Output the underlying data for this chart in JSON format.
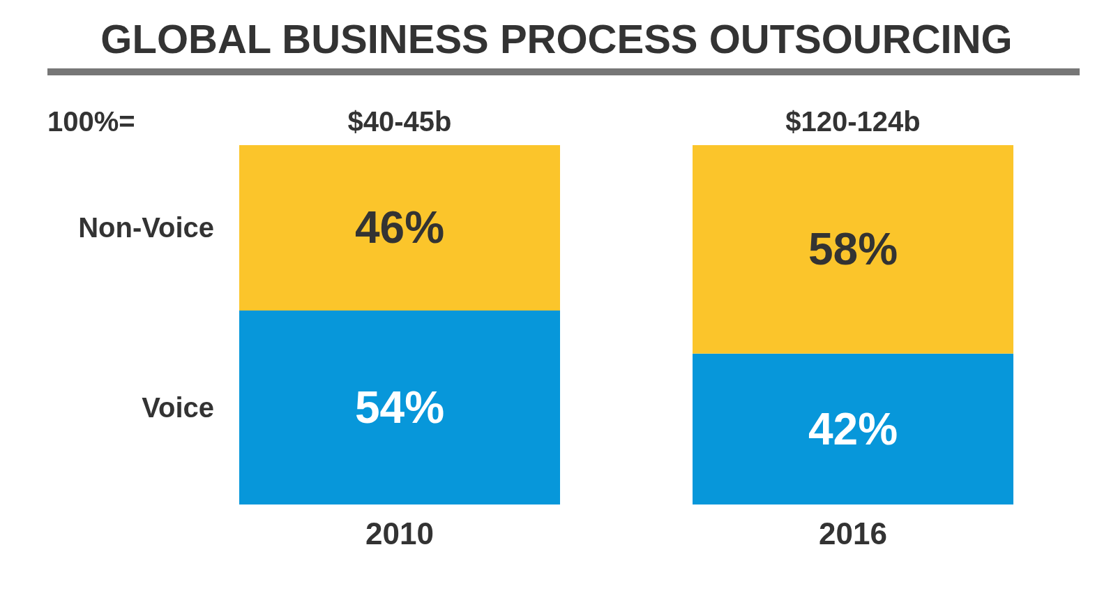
{
  "chart_data": {
    "type": "bar",
    "title": "GLOBAL BUSINESS PROCESS OUTSOURCING",
    "stacked": true,
    "categories": [
      "2010",
      "2016"
    ],
    "series": [
      {
        "name": "Voice",
        "color": "#0797da",
        "values": [
          54,
          42
        ],
        "value_labels": [
          "54%",
          "42%"
        ]
      },
      {
        "name": "Non-Voice",
        "color": "#fbc52b",
        "values": [
          46,
          58
        ],
        "value_labels": [
          "46%",
          "58%"
        ]
      }
    ],
    "totals": [
      "$40-45b",
      "$120-124b"
    ],
    "annotations": [
      "100%="
    ],
    "legend": false,
    "grid": false
  }
}
